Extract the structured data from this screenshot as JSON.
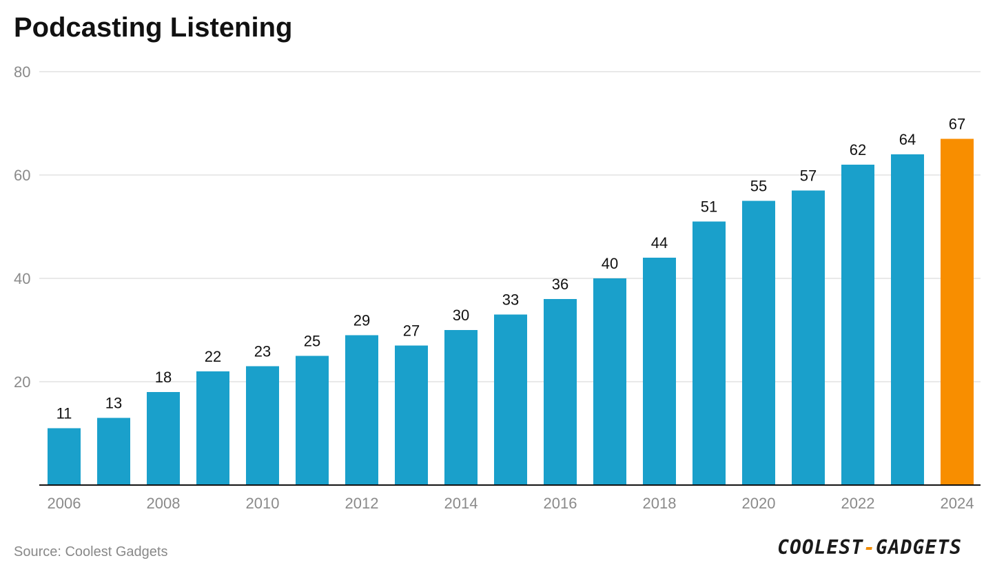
{
  "chart_data": {
    "type": "bar",
    "title": "Podcasting Listening",
    "xlabel": "",
    "ylabel": "",
    "ylim": [
      0,
      80
    ],
    "yticks": [
      20,
      40,
      60,
      80
    ],
    "categories": [
      "2006",
      "2007",
      "2008",
      "2009",
      "2010",
      "2011",
      "2012",
      "2013",
      "2014",
      "2015",
      "2016",
      "2017",
      "2018",
      "2019",
      "2020",
      "2021",
      "2022",
      "2023",
      "2024"
    ],
    "values": [
      11,
      13,
      18,
      22,
      23,
      25,
      29,
      27,
      30,
      33,
      36,
      40,
      44,
      51,
      55,
      57,
      62,
      64,
      67
    ],
    "xtick_labels": [
      "2006",
      "2008",
      "2010",
      "2012",
      "2014",
      "2016",
      "2018",
      "2020",
      "2022",
      "2024"
    ],
    "grid": true,
    "highlight_category": "2024"
  },
  "colors": {
    "bar": "#1aa0cb",
    "highlight": "#f88e00",
    "grid": "#e2e2e2",
    "axis": "#111111",
    "tick_text": "#8a8a8a",
    "label_text": "#111111"
  },
  "footer": {
    "source": "Source: Coolest Gadgets",
    "brand_left": "COOLEST",
    "brand_sep": "-",
    "brand_right": "GADGETS"
  }
}
